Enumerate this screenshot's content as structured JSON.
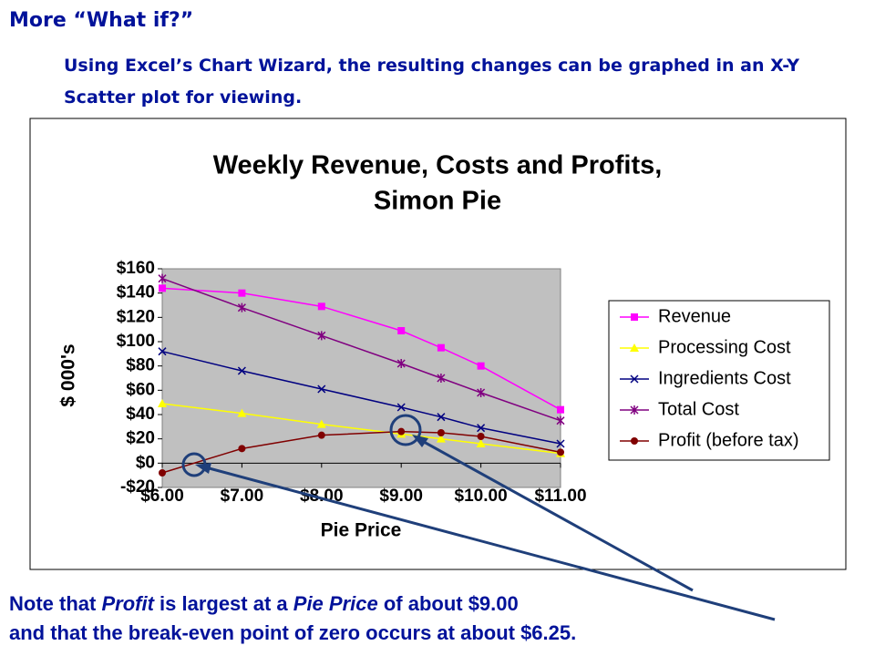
{
  "heading": "More “What if?”",
  "intro": "Using Excel’s Chart Wizard, the resulting changes can be graphed in an X-Y Scatter plot for viewing.",
  "note": {
    "line1": [
      "Note that ",
      "Profit",
      " is largest at a ",
      "Pie Price",
      " of about $9.00"
    ],
    "line2": "and that the break-even point of zero occurs at about $6.25."
  },
  "chart_data": {
    "type": "scatter",
    "title": "Weekly Revenue, Costs and Profits,",
    "subtitle": "Simon Pie",
    "x_label": "Pie Price",
    "y_label": "$ 000's",
    "x": [
      6,
      7,
      8,
      9,
      9.5,
      10,
      11
    ],
    "series": [
      {
        "name": "Revenue",
        "color": "#ff00ff",
        "marker": "square",
        "values": [
          144,
          140,
          129,
          109,
          95,
          80,
          44
        ]
      },
      {
        "name": "Processing Cost",
        "color": "#ffff00",
        "marker": "triangle",
        "values": [
          49,
          41,
          32,
          24,
          20,
          16,
          8
        ]
      },
      {
        "name": "Ingredients Cost",
        "color": "#000080",
        "marker": "x",
        "values": [
          92,
          76,
          61,
          46,
          38,
          29,
          16
        ]
      },
      {
        "name": "Total Cost",
        "color": "#800080",
        "marker": "star",
        "values": [
          152,
          128,
          105,
          82,
          70,
          58,
          35
        ]
      },
      {
        "name": "Profit (before tax)",
        "color": "#800000",
        "marker": "circle",
        "values": [
          -8,
          12,
          23,
          26,
          25,
          22,
          9
        ]
      }
    ],
    "xlim": [
      6,
      11
    ],
    "xticks": [
      {
        "value": 6,
        "label": "$6.00"
      },
      {
        "value": 7,
        "label": "$7.00"
      },
      {
        "value": 8,
        "label": "$8.00"
      },
      {
        "value": 9,
        "label": "$9.00"
      },
      {
        "value": 10,
        "label": "$10.00"
      },
      {
        "value": 11,
        "label": "$11.00"
      }
    ],
    "ylim": [
      -20,
      160
    ],
    "yticks": [
      {
        "value": -20,
        "label": "-$20"
      },
      {
        "value": 0,
        "label": "$0"
      },
      {
        "value": 20,
        "label": "$20"
      },
      {
        "value": 40,
        "label": "$40"
      },
      {
        "value": 60,
        "label": "$60"
      },
      {
        "value": 80,
        "label": "$80"
      },
      {
        "value": 100,
        "label": "$100"
      },
      {
        "value": 120,
        "label": "$120"
      },
      {
        "value": 140,
        "label": "$140"
      },
      {
        "value": 160,
        "label": "$160"
      }
    ],
    "plot_background": "#c0c0c0",
    "legend": "right"
  }
}
